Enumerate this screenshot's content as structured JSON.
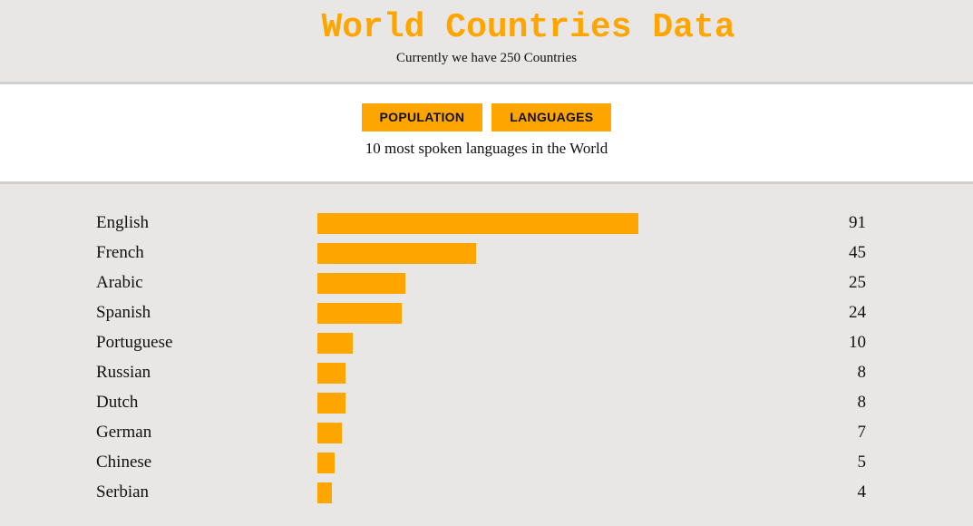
{
  "header": {
    "title": "World Countries Data",
    "subtitle": "Currently we have 250 Countries"
  },
  "controls": {
    "population_label": "POPULATION",
    "languages_label": "LANGUAGES",
    "caption": "10 most spoken languages in the World"
  },
  "colors": {
    "accent": "#ffa500",
    "background": "#e9e7e6"
  },
  "chart_data": {
    "type": "bar",
    "orientation": "horizontal",
    "categories": [
      "English",
      "French",
      "Arabic",
      "Spanish",
      "Portuguese",
      "Russian",
      "Dutch",
      "German",
      "Chinese",
      "Serbian"
    ],
    "values": [
      91,
      45,
      25,
      24,
      10,
      8,
      8,
      7,
      5,
      4
    ],
    "title": "10 most spoken languages in the World",
    "xlim": [
      0,
      91
    ]
  }
}
